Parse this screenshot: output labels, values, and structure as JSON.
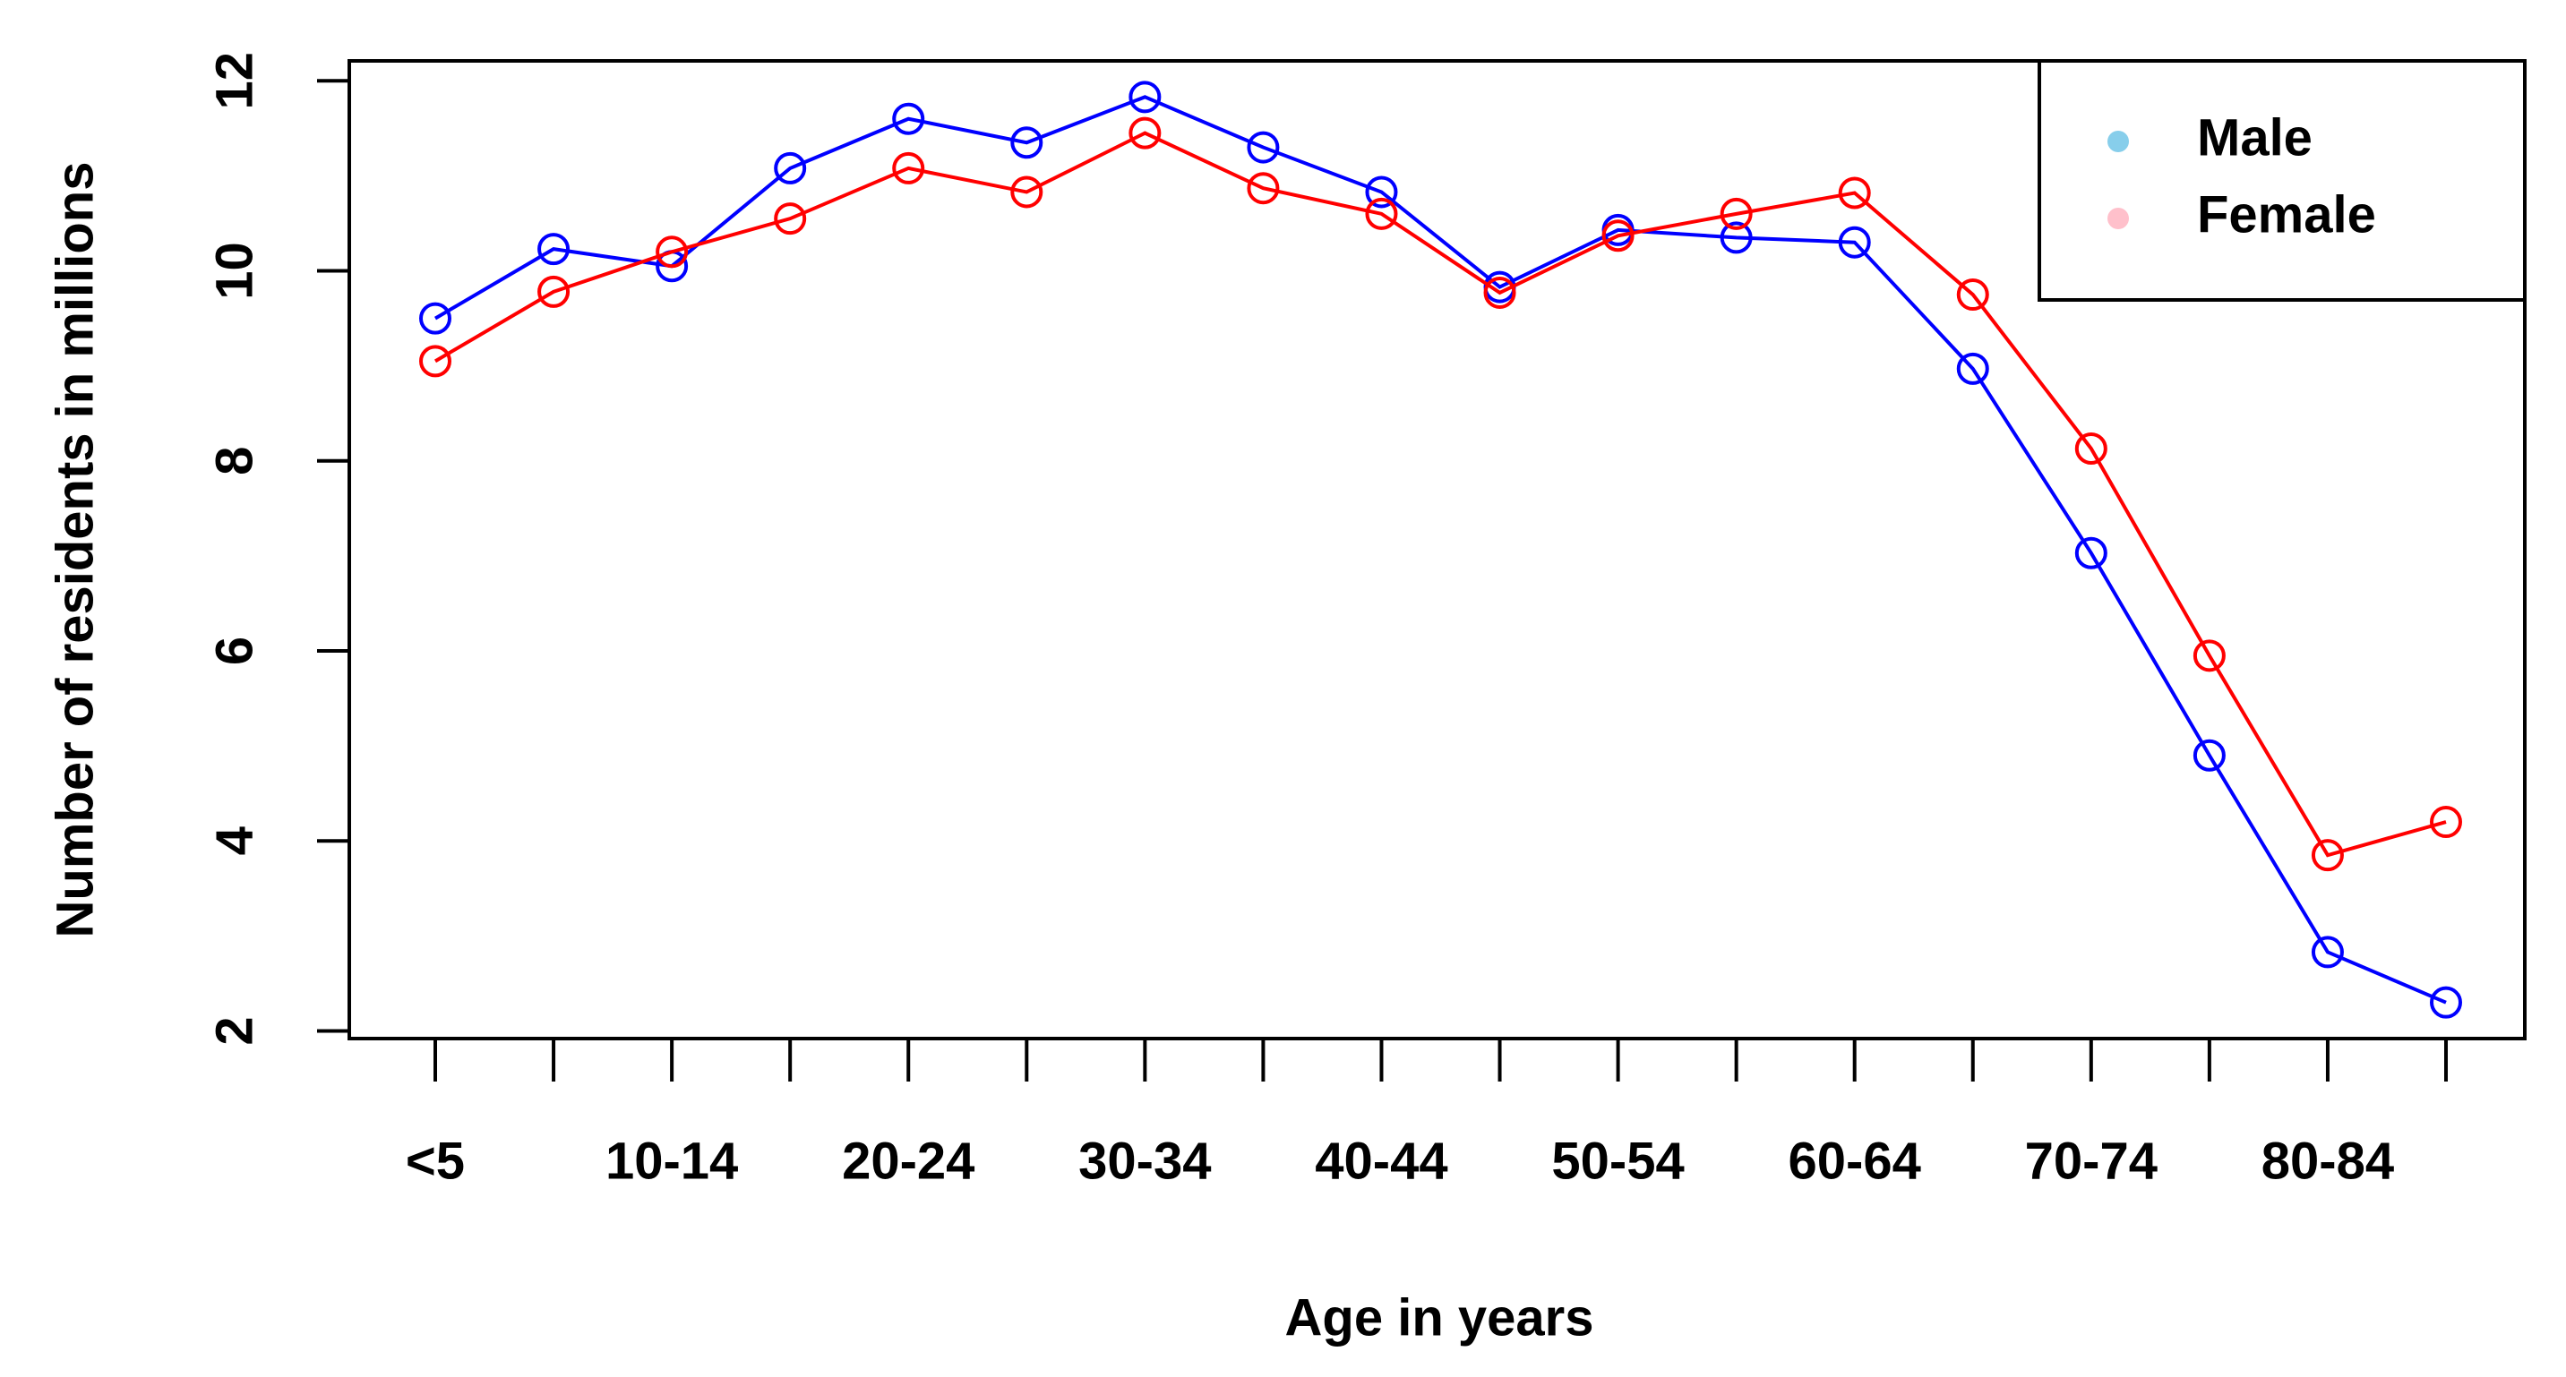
{
  "chart_data": {
    "type": "line",
    "x_label": "Age in years",
    "y_label": "Number of residents in millions",
    "categories": [
      "<5",
      null,
      "10-14",
      null,
      "20-24",
      null,
      "30-34",
      null,
      "40-44",
      null,
      "50-54",
      null,
      "60-64",
      null,
      "70-74",
      null,
      "80-84",
      null
    ],
    "series": [
      {
        "name": "Male",
        "color": "#0000ff",
        "legend_color": "#87ceeb",
        "values": [
          9.5,
          10.23,
          10.05,
          11.08,
          11.6,
          11.35,
          11.83,
          11.3,
          10.83,
          9.83,
          10.43,
          10.35,
          10.3,
          8.97,
          7.03,
          4.9,
          2.83,
          2.3
        ]
      },
      {
        "name": "Female",
        "color": "#ff0000",
        "legend_color": "#ffc0cb",
        "values": [
          9.05,
          9.78,
          10.2,
          10.55,
          11.08,
          10.83,
          11.45,
          10.87,
          10.6,
          9.77,
          10.37,
          10.6,
          10.82,
          9.75,
          8.13,
          5.95,
          3.85,
          4.2
        ]
      }
    ],
    "ylim": [
      1.92,
      12.21
    ],
    "yticks": [
      2,
      4,
      6,
      8,
      10,
      12
    ],
    "legend_position": "top-right"
  }
}
